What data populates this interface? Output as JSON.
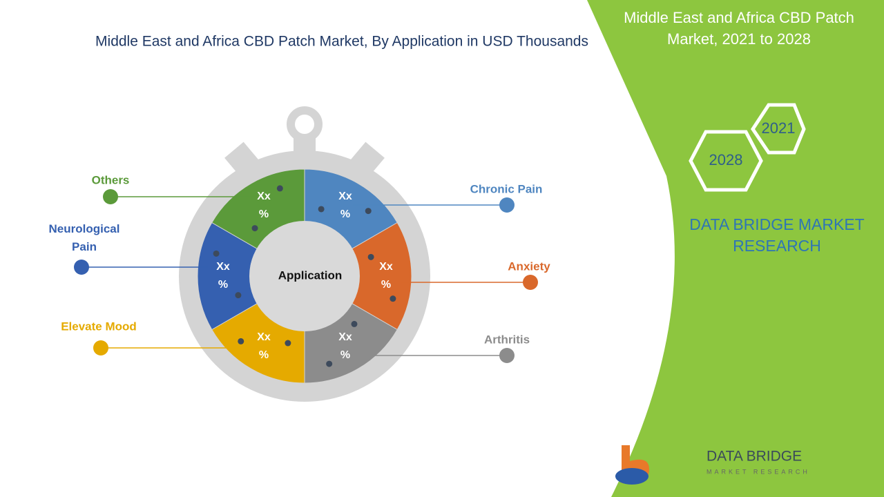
{
  "title": "Middle East and Africa CBD Patch Market, By Application in USD Thousands",
  "side_title": "Middle East and Africa CBD Patch Market, 2021 to 2028",
  "years": [
    "2021",
    "2028"
  ],
  "brand": "DATA BRIDGE MARKET RESEARCH",
  "center_label": "Application",
  "segments": [
    {
      "label": "Chronic Pain",
      "value_label": "Xx %",
      "color": "#4f86c0"
    },
    {
      "label": "Anxiety",
      "value_label": "Xx %",
      "color": "#d9682b"
    },
    {
      "label": "Arthritis",
      "value_label": "Xx %",
      "color": "#8c8c8c"
    },
    {
      "label": "Elevate Mood",
      "value_label": "Xx %",
      "color": "#e5aa00"
    },
    {
      "label": "Neurological Pain",
      "value_label": "Xx %",
      "color": "#3560b0"
    },
    {
      "label": "Others",
      "value_label": "Xx %",
      "color": "#5b9a3a"
    }
  ],
  "logo": {
    "name": "DATA BRIDGE",
    "tagline": "MARKET RESEARCH"
  }
}
